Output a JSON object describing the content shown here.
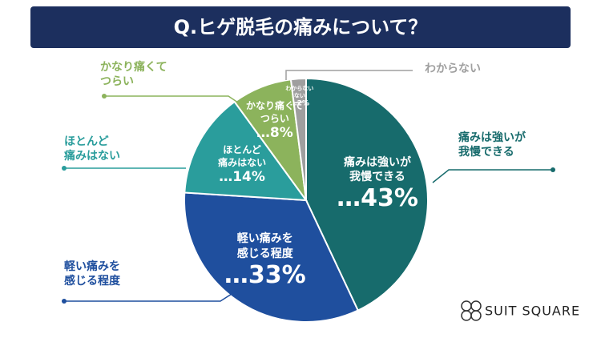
{
  "chart_data": {
    "type": "pie",
    "title": "Q.ヒゲ脱毛の痛みについて？",
    "categories": [
      "痛みは強いが\n我慢できる",
      "軽い痛みを\n感じる程度",
      "ほとんど\n痛みはない",
      "かなり痛くて\nつらい",
      "わからない\nない"
    ],
    "values": [
      43,
      33,
      14,
      8,
      2
    ],
    "value_labels": [
      "…43%",
      "…33%",
      "…14%",
      "…8%",
      "…2%"
    ],
    "colors": [
      "#176b6c",
      "#1f4f9e",
      "#2a9d9c",
      "#8cb35c",
      "#9f9f9f"
    ]
  },
  "outer_labels": [
    "痛みは強いが\n我慢できる",
    "軽い痛みを\n感じる程度",
    "ほとんど\n痛みはない",
    "かなり痛くて\nつらい",
    "わからない"
  ],
  "brand": "SUIT SQUARE"
}
